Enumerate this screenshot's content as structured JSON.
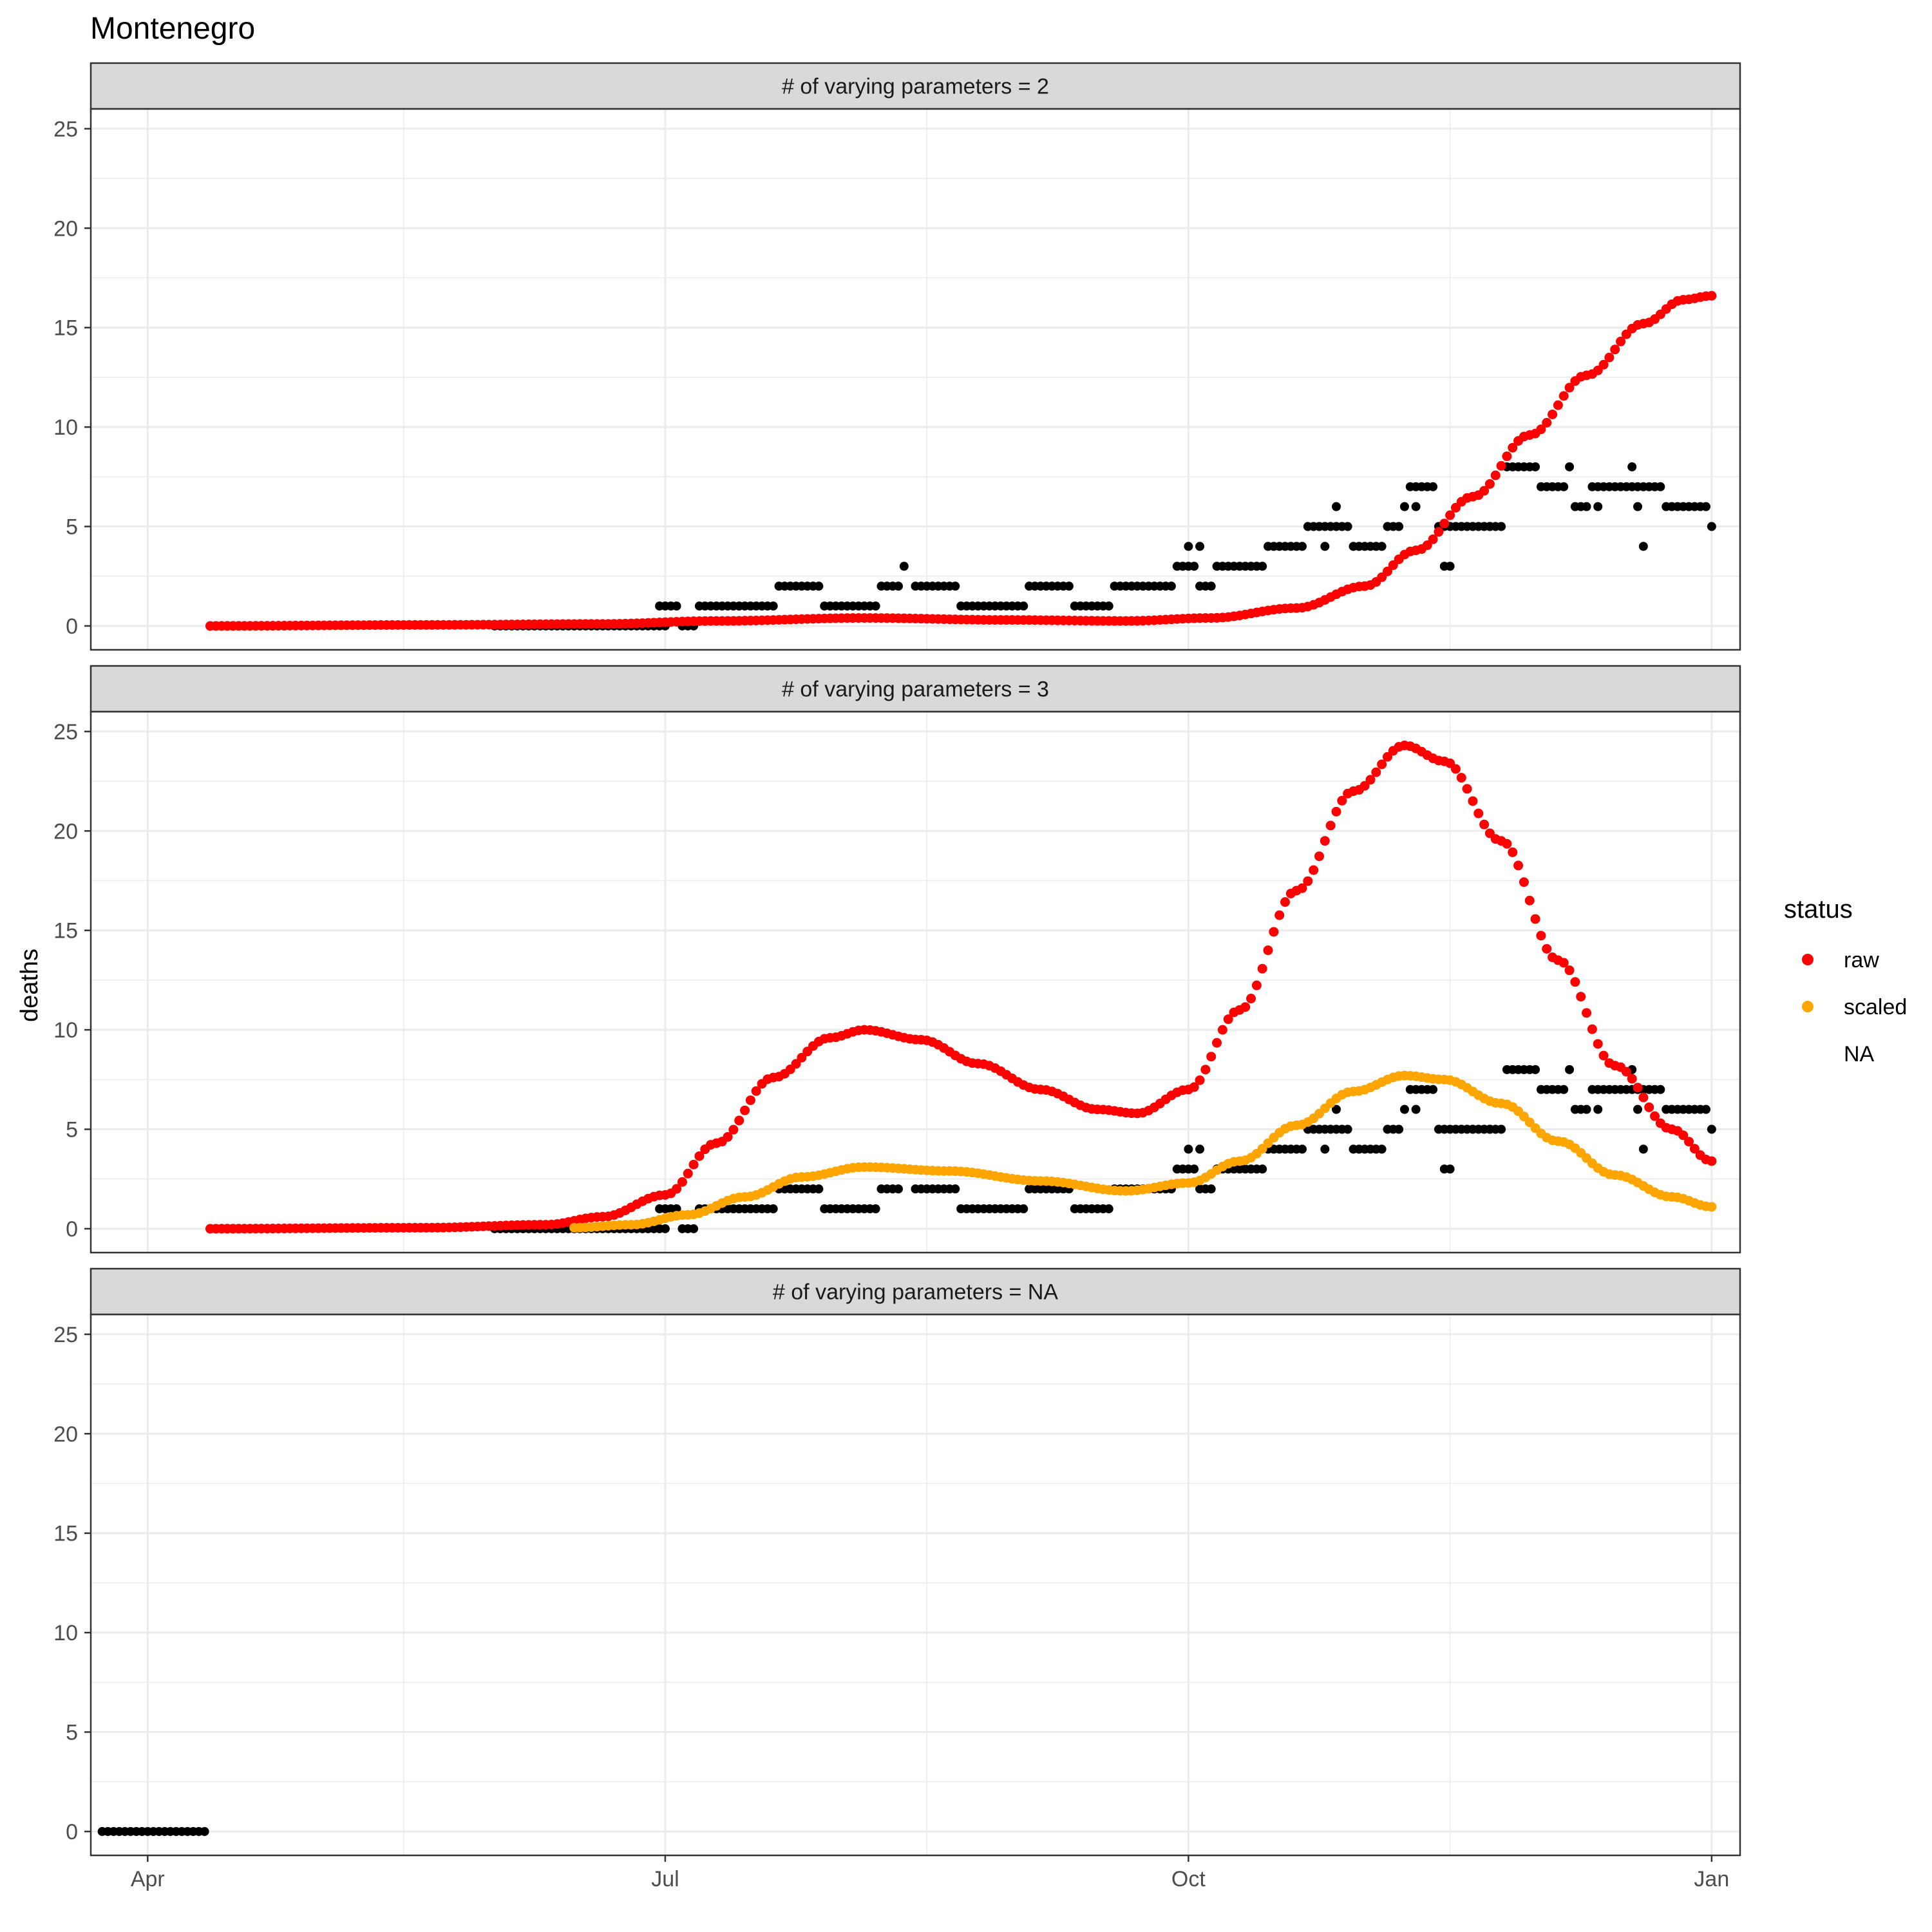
{
  "chart_data": {
    "type": "scatter",
    "title": "Montenegro",
    "ylabel": "deaths",
    "xlabel": "",
    "x_axis": {
      "type": "date",
      "range": [
        "2020-03-22",
        "2021-01-06"
      ],
      "ticks": [
        {
          "date": "2020-04-01",
          "label": "Apr"
        },
        {
          "date": "2020-07-01",
          "label": "Jul"
        },
        {
          "date": "2020-10-01",
          "label": "Oct"
        },
        {
          "date": "2021-01-01",
          "label": "Jan"
        }
      ]
    },
    "y_axis": {
      "range": [
        -1.2,
        26
      ],
      "ticks": [
        0,
        5,
        10,
        15,
        20,
        25
      ]
    },
    "grid": true,
    "legend": {
      "title": "status",
      "position": "right",
      "entries": [
        {
          "label": "raw",
          "color": "#ff0000"
        },
        {
          "label": "scaled",
          "color": "#ffa500"
        },
        {
          "label": "NA",
          "color": null
        }
      ]
    },
    "colors": {
      "raw": "#ff0000",
      "scaled": "#ffa500",
      "observed": "#000000"
    },
    "panels": [
      {
        "strip": "# of varying parameters = 2",
        "series": [
          {
            "name": "",
            "status": "observed",
            "segments": [
              {
                "from": "2020-06-01",
                "to": "2020-06-29",
                "y": 0
              },
              {
                "from": "2020-06-30",
                "to": "2020-07-03",
                "y": 1
              },
              {
                "from": "2020-07-04",
                "to": "2020-07-06",
                "y": 0
              },
              {
                "from": "2020-07-07",
                "to": "2020-07-20",
                "y": 1
              },
              {
                "from": "2020-07-21",
                "to": "2020-07-28",
                "y": 2
              },
              {
                "from": "2020-07-29",
                "to": "2020-08-07",
                "y": 1
              },
              {
                "from": "2020-08-08",
                "to": "2020-08-11",
                "y": 2
              },
              {
                "from": "2020-08-14",
                "to": "2020-08-21",
                "y": 2
              },
              {
                "from": "2020-08-22",
                "to": "2020-09-02",
                "y": 1
              },
              {
                "from": "2020-09-03",
                "to": "2020-09-10",
                "y": 2
              },
              {
                "from": "2020-09-11",
                "to": "2020-09-17",
                "y": 1
              },
              {
                "from": "2020-09-18",
                "to": "2020-09-24",
                "y": 2
              },
              {
                "from": "2020-09-25",
                "to": "2020-09-28",
                "y": 2
              },
              {
                "from": "2020-09-30",
                "to": "2020-10-02",
                "y": 3
              },
              {
                "from": "2020-10-03",
                "to": "2020-10-05",
                "y": 2
              },
              {
                "from": "2020-10-06",
                "to": "2020-10-14",
                "y": 3
              },
              {
                "from": "2020-10-15",
                "to": "2020-10-21",
                "y": 4
              },
              {
                "from": "2020-10-22",
                "to": "2020-10-29",
                "y": 5
              },
              {
                "from": "2020-10-30",
                "to": "2020-11-04",
                "y": 4
              },
              {
                "from": "2020-11-05",
                "to": "2020-11-07",
                "y": 5
              },
              {
                "from": "2020-11-09",
                "to": "2020-11-13",
                "y": 7
              },
              {
                "from": "2020-11-14",
                "to": "2020-11-21",
                "y": 5
              },
              {
                "from": "2020-11-22",
                "to": "2020-11-25",
                "y": 5
              },
              {
                "from": "2020-11-26",
                "to": "2020-12-01",
                "y": 8
              },
              {
                "from": "2020-12-02",
                "to": "2020-12-06",
                "y": 7
              },
              {
                "from": "2020-12-08",
                "to": "2020-12-10",
                "y": 6
              },
              {
                "from": "2020-12-11",
                "to": "2020-12-16",
                "y": 7
              },
              {
                "from": "2020-12-17",
                "to": "2020-12-23",
                "y": 7
              },
              {
                "from": "2020-12-24",
                "to": "2020-12-27",
                "y": 6
              },
              {
                "from": "2020-12-28",
                "to": "2020-12-31",
                "y": 6
              }
            ],
            "points": [
              {
                "date": "2020-06-30",
                "y": 0
              },
              {
                "date": "2020-07-01",
                "y": 0
              },
              {
                "date": "2020-08-12",
                "y": 3
              },
              {
                "date": "2020-09-29",
                "y": 3
              },
              {
                "date": "2020-10-01",
                "y": 4
              },
              {
                "date": "2020-10-03",
                "y": 4
              },
              {
                "date": "2020-10-25",
                "y": 4
              },
              {
                "date": "2020-10-27",
                "y": 6
              },
              {
                "date": "2020-11-08",
                "y": 6
              },
              {
                "date": "2020-11-10",
                "y": 6
              },
              {
                "date": "2020-11-15",
                "y": 3
              },
              {
                "date": "2020-11-16",
                "y": 3
              },
              {
                "date": "2020-11-23",
                "y": 5
              },
              {
                "date": "2020-12-07",
                "y": 8
              },
              {
                "date": "2020-12-12",
                "y": 6
              },
              {
                "date": "2020-12-18",
                "y": 8
              },
              {
                "date": "2020-12-19",
                "y": 6
              },
              {
                "date": "2020-12-20",
                "y": 4
              },
              {
                "date": "2021-01-01",
                "y": 5
              }
            ]
          },
          {
            "name": "raw",
            "status": "raw",
            "curve": [
              {
                "date": "2020-04-12",
                "y": 0
              },
              {
                "date": "2020-05-20",
                "y": 0.05
              },
              {
                "date": "2020-06-20",
                "y": 0.1
              },
              {
                "date": "2020-07-10",
                "y": 0.25
              },
              {
                "date": "2020-08-05",
                "y": 0.4
              },
              {
                "date": "2020-08-30",
                "y": 0.3
              },
              {
                "date": "2020-09-20",
                "y": 0.25
              },
              {
                "date": "2020-10-05",
                "y": 0.4
              },
              {
                "date": "2020-10-20",
                "y": 0.9
              },
              {
                "date": "2020-11-01",
                "y": 2
              },
              {
                "date": "2020-11-10",
                "y": 3.8
              },
              {
                "date": "2020-11-20",
                "y": 6.5
              },
              {
                "date": "2020-11-30",
                "y": 9.6
              },
              {
                "date": "2020-12-10",
                "y": 12.6
              },
              {
                "date": "2020-12-20",
                "y": 15.2
              },
              {
                "date": "2020-12-27",
                "y": 16.4
              },
              {
                "date": "2021-01-01",
                "y": 16.6
              }
            ]
          }
        ]
      },
      {
        "strip": "# of varying parameters = 3",
        "series": [
          {
            "name": "",
            "status": "observed",
            "segments": [
              {
                "from": "2020-06-01",
                "to": "2020-06-29",
                "y": 0
              },
              {
                "from": "2020-06-30",
                "to": "2020-07-03",
                "y": 1
              },
              {
                "from": "2020-07-04",
                "to": "2020-07-06",
                "y": 0
              },
              {
                "from": "2020-07-07",
                "to": "2020-07-20",
                "y": 1
              },
              {
                "from": "2020-07-21",
                "to": "2020-07-28",
                "y": 2
              },
              {
                "from": "2020-07-29",
                "to": "2020-08-07",
                "y": 1
              },
              {
                "from": "2020-08-08",
                "to": "2020-08-11",
                "y": 2
              },
              {
                "from": "2020-08-14",
                "to": "2020-08-21",
                "y": 2
              },
              {
                "from": "2020-08-22",
                "to": "2020-09-02",
                "y": 1
              },
              {
                "from": "2020-09-03",
                "to": "2020-09-10",
                "y": 2
              },
              {
                "from": "2020-09-11",
                "to": "2020-09-17",
                "y": 1
              },
              {
                "from": "2020-09-18",
                "to": "2020-09-24",
                "y": 2
              },
              {
                "from": "2020-09-25",
                "to": "2020-09-28",
                "y": 2
              },
              {
                "from": "2020-09-30",
                "to": "2020-10-02",
                "y": 3
              },
              {
                "from": "2020-10-03",
                "to": "2020-10-05",
                "y": 2
              },
              {
                "from": "2020-10-06",
                "to": "2020-10-14",
                "y": 3
              },
              {
                "from": "2020-10-15",
                "to": "2020-10-21",
                "y": 4
              },
              {
                "from": "2020-10-22",
                "to": "2020-10-29",
                "y": 5
              },
              {
                "from": "2020-10-30",
                "to": "2020-11-04",
                "y": 4
              },
              {
                "from": "2020-11-05",
                "to": "2020-11-07",
                "y": 5
              },
              {
                "from": "2020-11-09",
                "to": "2020-11-13",
                "y": 7
              },
              {
                "from": "2020-11-14",
                "to": "2020-11-21",
                "y": 5
              },
              {
                "from": "2020-11-22",
                "to": "2020-11-25",
                "y": 5
              },
              {
                "from": "2020-11-26",
                "to": "2020-12-01",
                "y": 8
              },
              {
                "from": "2020-12-02",
                "to": "2020-12-06",
                "y": 7
              },
              {
                "from": "2020-12-08",
                "to": "2020-12-10",
                "y": 6
              },
              {
                "from": "2020-12-11",
                "to": "2020-12-16",
                "y": 7
              },
              {
                "from": "2020-12-17",
                "to": "2020-12-23",
                "y": 7
              },
              {
                "from": "2020-12-24",
                "to": "2020-12-27",
                "y": 6
              },
              {
                "from": "2020-12-28",
                "to": "2020-12-31",
                "y": 6
              }
            ],
            "points": [
              {
                "date": "2020-06-30",
                "y": 0
              },
              {
                "date": "2020-07-01",
                "y": 0
              },
              {
                "date": "2020-08-12",
                "y": 3
              },
              {
                "date": "2020-09-29",
                "y": 3
              },
              {
                "date": "2020-10-01",
                "y": 4
              },
              {
                "date": "2020-10-03",
                "y": 4
              },
              {
                "date": "2020-10-25",
                "y": 4
              },
              {
                "date": "2020-10-27",
                "y": 6
              },
              {
                "date": "2020-11-08",
                "y": 6
              },
              {
                "date": "2020-11-10",
                "y": 6
              },
              {
                "date": "2020-11-15",
                "y": 3
              },
              {
                "date": "2020-11-16",
                "y": 3
              },
              {
                "date": "2020-11-23",
                "y": 5
              },
              {
                "date": "2020-12-07",
                "y": 8
              },
              {
                "date": "2020-12-12",
                "y": 6
              },
              {
                "date": "2020-12-18",
                "y": 8
              },
              {
                "date": "2020-12-19",
                "y": 6
              },
              {
                "date": "2020-12-20",
                "y": 4
              },
              {
                "date": "2021-01-01",
                "y": 5
              }
            ]
          },
          {
            "name": "raw",
            "status": "raw",
            "curve": [
              {
                "date": "2020-04-12",
                "y": 0
              },
              {
                "date": "2020-05-20",
                "y": 0.05
              },
              {
                "date": "2020-06-10",
                "y": 0.2
              },
              {
                "date": "2020-06-20",
                "y": 0.6
              },
              {
                "date": "2020-07-01",
                "y": 1.7
              },
              {
                "date": "2020-07-10",
                "y": 4.3
              },
              {
                "date": "2020-07-20",
                "y": 7.6
              },
              {
                "date": "2020-07-30",
                "y": 9.6
              },
              {
                "date": "2020-08-05",
                "y": 10.0
              },
              {
                "date": "2020-08-15",
                "y": 9.5
              },
              {
                "date": "2020-08-25",
                "y": 8.3
              },
              {
                "date": "2020-09-05",
                "y": 7.0
              },
              {
                "date": "2020-09-15",
                "y": 6.0
              },
              {
                "date": "2020-09-22",
                "y": 5.8
              },
              {
                "date": "2020-10-01",
                "y": 7.0
              },
              {
                "date": "2020-10-10",
                "y": 11.0
              },
              {
                "date": "2020-10-20",
                "y": 17.0
              },
              {
                "date": "2020-10-30",
                "y": 22.0
              },
              {
                "date": "2020-11-08",
                "y": 24.3
              },
              {
                "date": "2020-11-15",
                "y": 23.5
              },
              {
                "date": "2020-11-25",
                "y": 19.5
              },
              {
                "date": "2020-12-05",
                "y": 13.5
              },
              {
                "date": "2020-12-15",
                "y": 8.2
              },
              {
                "date": "2020-12-25",
                "y": 5.0
              },
              {
                "date": "2021-01-01",
                "y": 3.4
              }
            ]
          },
          {
            "name": "scaled",
            "status": "scaled",
            "curve": [
              {
                "date": "2020-06-15",
                "y": 0.05
              },
              {
                "date": "2020-06-25",
                "y": 0.2
              },
              {
                "date": "2020-07-05",
                "y": 0.7
              },
              {
                "date": "2020-07-15",
                "y": 1.6
              },
              {
                "date": "2020-07-25",
                "y": 2.6
              },
              {
                "date": "2020-08-05",
                "y": 3.1
              },
              {
                "date": "2020-08-20",
                "y": 2.9
              },
              {
                "date": "2020-09-05",
                "y": 2.4
              },
              {
                "date": "2020-09-20",
                "y": 1.9
              },
              {
                "date": "2020-10-01",
                "y": 2.3
              },
              {
                "date": "2020-10-10",
                "y": 3.4
              },
              {
                "date": "2020-10-20",
                "y": 5.2
              },
              {
                "date": "2020-10-30",
                "y": 6.9
              },
              {
                "date": "2020-11-08",
                "y": 7.7
              },
              {
                "date": "2020-11-15",
                "y": 7.5
              },
              {
                "date": "2020-11-25",
                "y": 6.3
              },
              {
                "date": "2020-12-05",
                "y": 4.4
              },
              {
                "date": "2020-12-15",
                "y": 2.7
              },
              {
                "date": "2020-12-25",
                "y": 1.6
              },
              {
                "date": "2021-01-01",
                "y": 1.1
              }
            ]
          }
        ]
      },
      {
        "strip": "# of varying parameters = NA",
        "series": [
          {
            "name": "",
            "status": "observed",
            "segments": [
              {
                "from": "2020-03-24",
                "to": "2020-04-11",
                "y": 0
              }
            ],
            "points": []
          }
        ]
      }
    ]
  }
}
